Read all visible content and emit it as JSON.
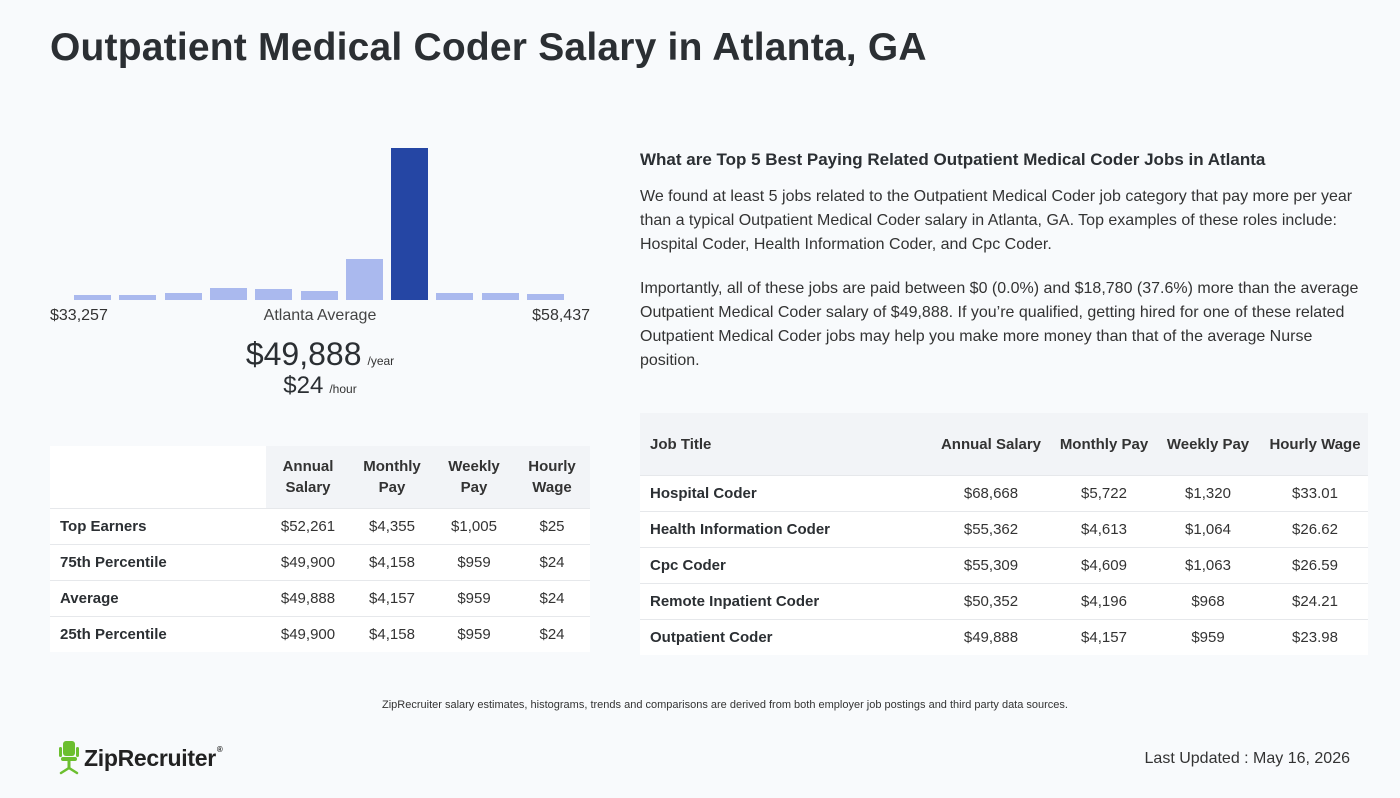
{
  "page": {
    "title": "Outpatient Medical Coder Salary in Atlanta, GA"
  },
  "colors": {
    "bar": "#aab9ee",
    "bar_active": "#2546a4",
    "logo_green": "#6cbf2f"
  },
  "chart_data": {
    "type": "bar",
    "title": "",
    "min_label": "$33,257",
    "max_label": "$58,437",
    "center_label": "Atlanta Average",
    "relative_heights": [
      0.03,
      0.035,
      0.045,
      0.08,
      0.075,
      0.06,
      0.27,
      1.0,
      0.045,
      0.045,
      0.04
    ],
    "highlighted_index": 7
  },
  "average": {
    "yearly": "$49,888",
    "yearly_unit": "/year",
    "hourly": "$24",
    "hourly_unit": "/hour"
  },
  "percentiles": {
    "headers": [
      "Annual Salary",
      "Monthly Pay",
      "Weekly Pay",
      "Hourly Wage"
    ],
    "rows": [
      {
        "label": "Top Earners",
        "annual": "$52,261",
        "monthly": "$4,355",
        "weekly": "$1,005",
        "hourly": "$25"
      },
      {
        "label": "75th Percentile",
        "annual": "$49,900",
        "monthly": "$4,158",
        "weekly": "$959",
        "hourly": "$24"
      },
      {
        "label": "Average",
        "annual": "$49,888",
        "monthly": "$4,157",
        "weekly": "$959",
        "hourly": "$24"
      },
      {
        "label": "25th Percentile",
        "annual": "$49,900",
        "monthly": "$4,158",
        "weekly": "$959",
        "hourly": "$24"
      }
    ]
  },
  "related": {
    "heading": "What are Top 5 Best Paying Related Outpatient Medical Coder Jobs in Atlanta",
    "paragraph1": "We found at least 5 jobs related to the Outpatient Medical Coder job category that pay more per year than a typical Outpatient Medical Coder salary in Atlanta, GA. Top examples of these roles include: Hospital Coder, Health Information Coder, and Cpc Coder.",
    "paragraph2": "Importantly, all of these jobs are paid between $0 (0.0%) and $18,780 (37.6%) more than the average Outpatient Medical Coder salary of $49,888. If you’re qualified, getting hired for one of these related Outpatient Medical Coder jobs may help you make more money than that of the average Nurse position.",
    "headers": [
      "Job Title",
      "Annual Salary",
      "Monthly Pay",
      "Weekly Pay",
      "Hourly Wage"
    ],
    "rows": [
      {
        "title": "Hospital Coder",
        "annual": "$68,668",
        "monthly": "$5,722",
        "weekly": "$1,320",
        "hourly": "$33.01"
      },
      {
        "title": "Health Information Coder",
        "annual": "$55,362",
        "monthly": "$4,613",
        "weekly": "$1,064",
        "hourly": "$26.62"
      },
      {
        "title": "Cpc Coder",
        "annual": "$55,309",
        "monthly": "$4,609",
        "weekly": "$1,063",
        "hourly": "$26.59"
      },
      {
        "title": "Remote Inpatient Coder",
        "annual": "$50,352",
        "monthly": "$4,196",
        "weekly": "$968",
        "hourly": "$24.21"
      },
      {
        "title": "Outpatient Coder",
        "annual": "$49,888",
        "monthly": "$4,157",
        "weekly": "$959",
        "hourly": "$23.98"
      }
    ]
  },
  "footer": {
    "disclaimer": "ZipRecruiter salary estimates, histograms, trends and comparisons are derived from both employer job postings and third party data sources.",
    "logo_text": "ZipRecruiter",
    "logo_icon": "chair-icon",
    "last_updated": "Last Updated : May 16, 2026"
  }
}
